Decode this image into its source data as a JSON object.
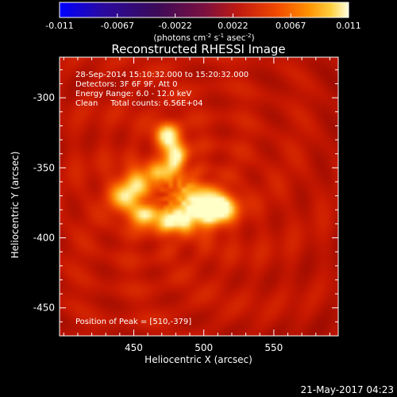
{
  "chart_data": {
    "type": "heatmap",
    "title": "Reconstructed RHESSI Image",
    "xlabel": "Heliocentric X (arcsec)",
    "ylabel": "Heliocentric Y (arcsec)",
    "xlim": [
      397,
      596
    ],
    "ylim": [
      -470,
      -271
    ],
    "xticks": [
      450,
      500,
      550
    ],
    "yticks": [
      -300,
      -350,
      -400,
      -450
    ],
    "colorbar": {
      "min": -0.011,
      "max": 0.011,
      "ticks": [
        "-0.011",
        "-0.0067",
        "-0.0022",
        "0.0022",
        "0.0067",
        "0.011"
      ],
      "label_main": "(photons cm",
      "label_sup1": "-2",
      "label_mid1": " s",
      "label_sup2": "-1",
      "label_mid2": " asec",
      "label_sup3": "-2",
      "label_end": ")"
    },
    "annotations": [
      "28-Sep-2014 15:10:32.000 to 15:20:32.000",
      "Detectors: 3F 6F 9F, Att 0",
      "Energy Range: 6.0 - 12.0 keV",
      "Clean     Total counts: 6.56E+04"
    ],
    "peak_label": "Position of Peak = [510,-379]",
    "peak": {
      "x": 510,
      "y": -379
    },
    "sources": [
      {
        "x": 510,
        "y": -378,
        "sx": 9,
        "sy": 7,
        "amp": 1.0
      },
      {
        "x": 496,
        "y": -383,
        "sx": 12,
        "sy": 9,
        "amp": 0.55
      },
      {
        "x": 474,
        "y": -326,
        "sx": 6,
        "sy": 6,
        "amp": 0.78
      },
      {
        "x": 480,
        "y": -340,
        "sx": 6,
        "sy": 7,
        "amp": 0.72
      },
      {
        "x": 472,
        "y": -352,
        "sx": 7,
        "sy": 6,
        "amp": 0.55
      },
      {
        "x": 455,
        "y": -358,
        "sx": 8,
        "sy": 6,
        "amp": 0.5
      },
      {
        "x": 445,
        "y": -370,
        "sx": 9,
        "sy": 8,
        "amp": 0.68
      },
      {
        "x": 458,
        "y": -385,
        "sx": 8,
        "sy": 6,
        "amp": 0.62
      },
      {
        "x": 478,
        "y": -388,
        "sx": 8,
        "sy": 6,
        "amp": 0.7
      },
      {
        "x": 490,
        "y": -368,
        "sx": 10,
        "sy": 8,
        "amp": 0.45
      }
    ]
  },
  "footer": {
    "date": "21-May-2017 04:23"
  },
  "colors": {
    "background": "#000000",
    "plot_base": "#c01800",
    "text": "#ffffff"
  }
}
